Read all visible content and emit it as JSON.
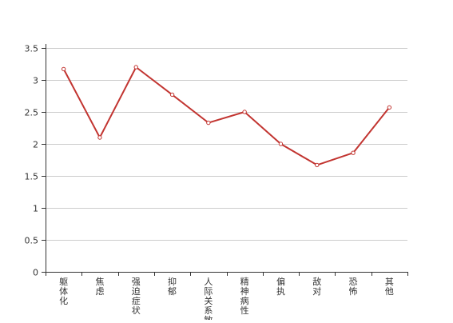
{
  "chart_data": {
    "type": "line",
    "categories": [
      "躯体化",
      "焦虑",
      "强迫症状",
      "抑郁",
      "人际关系敏感",
      "精神病性",
      "偏执",
      "敌对",
      "恐怖",
      "其他"
    ],
    "series": [
      {
        "values": [
          3.17,
          2.1,
          3.2,
          2.77,
          2.33,
          2.5,
          2.0,
          1.67,
          1.86,
          2.57
        ]
      }
    ],
    "ylim": [
      0,
      3.5
    ],
    "yticks": [
      "0",
      "0.5",
      "1",
      "1.5",
      "2",
      "2.5",
      "3",
      "3.5"
    ],
    "grid": "horizontal",
    "line_color": "#c23531",
    "grid_color": "#cccccc",
    "axis_color": "#333333"
  }
}
